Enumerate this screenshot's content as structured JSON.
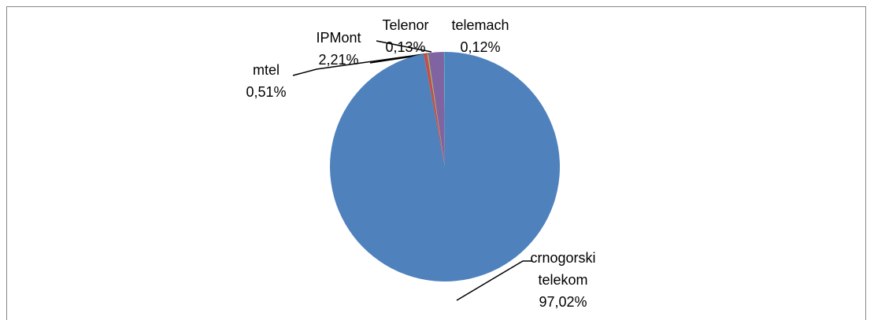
{
  "chart_data": {
    "type": "pie",
    "categories": [
      "crnogorski telekom",
      "mtel",
      "Telenor",
      "IPMont",
      "telemach"
    ],
    "values": [
      97.02,
      0.51,
      0.13,
      2.21,
      0.12
    ],
    "value_labels": [
      "97,02%",
      "0,51%",
      "0,13%",
      "2,21%",
      "0,12%"
    ],
    "colors": [
      "#4f81bd",
      "#c0504d",
      "#9bbb59",
      "#8064a2",
      "#4bacc6"
    ]
  }
}
